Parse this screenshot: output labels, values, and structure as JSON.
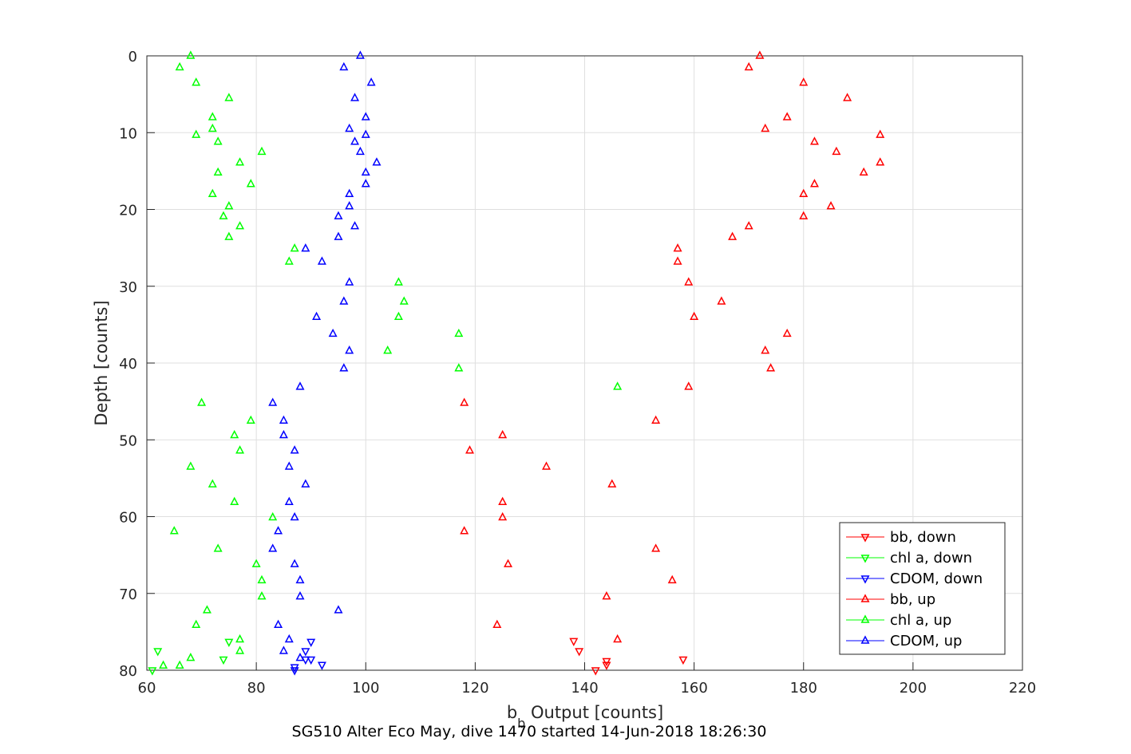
{
  "chart_data": {
    "type": "scatter",
    "title": "SG510 Alter Eco May, dive 1470 started 14-Jun-2018 18:26:30",
    "xlabel_main": "b",
    "xlabel_sub": "b",
    "xlabel_rest": " Output [counts]",
    "ylabel": "Depth [counts]",
    "xlim": [
      60,
      220
    ],
    "ylim": [
      0,
      80
    ],
    "y_reversed": true,
    "grid": true,
    "x_ticks": [
      60,
      80,
      100,
      120,
      140,
      160,
      180,
      200,
      220
    ],
    "y_ticks": [
      0,
      10,
      20,
      30,
      40,
      50,
      60,
      70,
      80
    ],
    "legend_position": "bottom-right",
    "series": [
      {
        "name": "bb, down",
        "color": "#ff0000",
        "marker": "triangle-down",
        "points": [
          [
            138,
            76.2
          ],
          [
            139,
            77.5
          ],
          [
            144,
            78.8
          ],
          [
            144,
            79.3
          ],
          [
            158,
            78.6
          ],
          [
            142,
            80
          ]
        ]
      },
      {
        "name": "chl a, down",
        "color": "#00ff00",
        "marker": "triangle-down",
        "points": [
          [
            62,
            77.5
          ],
          [
            74,
            78.6
          ],
          [
            75,
            76.3
          ],
          [
            61,
            80
          ]
        ]
      },
      {
        "name": "CDOM, down",
        "color": "#0000ff",
        "marker": "triangle-down",
        "points": [
          [
            90,
            76.3
          ],
          [
            89,
            77.5
          ],
          [
            90,
            78.6
          ],
          [
            89,
            78.6
          ],
          [
            92,
            79.3
          ],
          [
            87,
            79.6
          ],
          [
            87,
            80
          ]
        ]
      },
      {
        "name": "bb, up",
        "color": "#ff0000",
        "marker": "triangle-up",
        "points": [
          [
            172,
            0
          ],
          [
            170,
            1.5
          ],
          [
            180,
            3.5
          ],
          [
            188,
            5.5
          ],
          [
            177,
            8
          ],
          [
            173,
            9.5
          ],
          [
            194,
            10.3
          ],
          [
            182,
            11.2
          ],
          [
            186,
            12.5
          ],
          [
            194,
            13.9
          ],
          [
            191,
            15.2
          ],
          [
            182,
            16.7
          ],
          [
            180,
            18
          ],
          [
            185,
            19.6
          ],
          [
            180,
            20.9
          ],
          [
            170,
            22.2
          ],
          [
            167,
            23.6
          ],
          [
            157,
            25.1
          ],
          [
            157,
            26.8
          ],
          [
            159,
            29.5
          ],
          [
            165,
            32
          ],
          [
            160,
            34
          ],
          [
            177,
            36.2
          ],
          [
            173,
            38.4
          ],
          [
            174,
            40.7
          ],
          [
            159,
            43.1
          ],
          [
            118,
            45.2
          ],
          [
            153,
            47.5
          ],
          [
            125,
            49.4
          ],
          [
            119,
            51.4
          ],
          [
            133,
            53.5
          ],
          [
            145,
            55.8
          ],
          [
            125,
            58.1
          ],
          [
            125,
            60.1
          ],
          [
            118,
            61.9
          ],
          [
            153,
            64.2
          ],
          [
            126,
            66.2
          ],
          [
            156,
            68.3
          ],
          [
            144,
            70.4
          ],
          [
            124,
            74.1
          ],
          [
            146,
            76
          ]
        ]
      },
      {
        "name": "chl a, up",
        "color": "#00ff00",
        "marker": "triangle-up",
        "points": [
          [
            68,
            0
          ],
          [
            66,
            1.5
          ],
          [
            69,
            3.5
          ],
          [
            75,
            5.5
          ],
          [
            72,
            8
          ],
          [
            72,
            9.5
          ],
          [
            69,
            10.3
          ],
          [
            73,
            11.2
          ],
          [
            81,
            12.5
          ],
          [
            77,
            13.9
          ],
          [
            73,
            15.2
          ],
          [
            79,
            16.7
          ],
          [
            72,
            18
          ],
          [
            75,
            19.6
          ],
          [
            74,
            20.9
          ],
          [
            77,
            22.2
          ],
          [
            75,
            23.6
          ],
          [
            87,
            25.1
          ],
          [
            86,
            26.8
          ],
          [
            106,
            29.5
          ],
          [
            107,
            32
          ],
          [
            106,
            34
          ],
          [
            117,
            36.2
          ],
          [
            104,
            38.4
          ],
          [
            117,
            40.7
          ],
          [
            146,
            43.1
          ],
          [
            70,
            45.2
          ],
          [
            79,
            47.5
          ],
          [
            76,
            49.4
          ],
          [
            77,
            51.4
          ],
          [
            68,
            53.5
          ],
          [
            72,
            55.8
          ],
          [
            76,
            58.1
          ],
          [
            83,
            60.1
          ],
          [
            65,
            61.9
          ],
          [
            73,
            64.2
          ],
          [
            80,
            66.2
          ],
          [
            81,
            68.3
          ],
          [
            81,
            70.4
          ],
          [
            71,
            72.2
          ],
          [
            69,
            74.1
          ],
          [
            77,
            76
          ],
          [
            77,
            77.5
          ],
          [
            68,
            78.4
          ],
          [
            66,
            79.4
          ],
          [
            63,
            79.4
          ]
        ]
      },
      {
        "name": "CDOM, up",
        "color": "#0000ff",
        "marker": "triangle-up",
        "points": [
          [
            99,
            0
          ],
          [
            96,
            1.5
          ],
          [
            101,
            3.5
          ],
          [
            98,
            5.5
          ],
          [
            100,
            8
          ],
          [
            97,
            9.5
          ],
          [
            100,
            10.3
          ],
          [
            98,
            11.2
          ],
          [
            99,
            12.5
          ],
          [
            102,
            13.9
          ],
          [
            100,
            15.2
          ],
          [
            100,
            16.7
          ],
          [
            97,
            18
          ],
          [
            97,
            19.6
          ],
          [
            95,
            20.9
          ],
          [
            98,
            22.2
          ],
          [
            95,
            23.6
          ],
          [
            89,
            25.1
          ],
          [
            92,
            26.8
          ],
          [
            97,
            29.5
          ],
          [
            96,
            32
          ],
          [
            91,
            34
          ],
          [
            94,
            36.2
          ],
          [
            97,
            38.4
          ],
          [
            96,
            40.7
          ],
          [
            88,
            43.1
          ],
          [
            83,
            45.2
          ],
          [
            85,
            47.5
          ],
          [
            85,
            49.4
          ],
          [
            87,
            51.4
          ],
          [
            86,
            53.5
          ],
          [
            89,
            55.8
          ],
          [
            86,
            58.1
          ],
          [
            87,
            60.1
          ],
          [
            84,
            61.9
          ],
          [
            83,
            64.2
          ],
          [
            87,
            66.2
          ],
          [
            88,
            68.3
          ],
          [
            88,
            70.4
          ],
          [
            95,
            72.2
          ],
          [
            84,
            74.1
          ],
          [
            86,
            76
          ],
          [
            85,
            77.5
          ],
          [
            88,
            78.4
          ]
        ]
      }
    ]
  }
}
